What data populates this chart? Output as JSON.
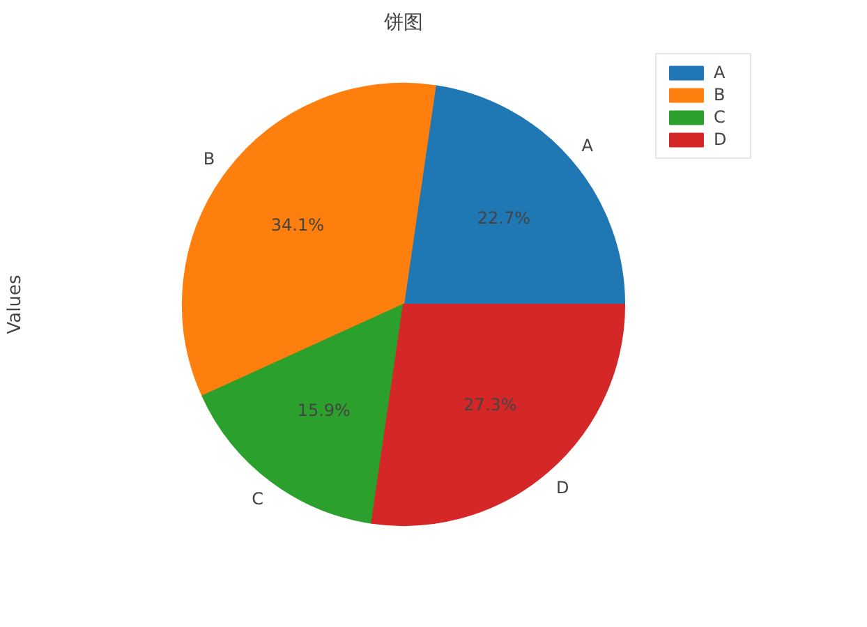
{
  "chart_data": {
    "type": "pie",
    "title": "饼图",
    "ylabel": "Values",
    "categories": [
      "A",
      "B",
      "C",
      "D"
    ],
    "values": [
      22.7,
      34.1,
      15.9,
      27.3
    ],
    "colors": [
      "#1f77b4",
      "#ff7f0e",
      "#2ca02c",
      "#d62728"
    ],
    "value_labels": [
      "22.7%",
      "34.1%",
      "15.9%",
      "27.3%"
    ],
    "legend": "top right"
  }
}
